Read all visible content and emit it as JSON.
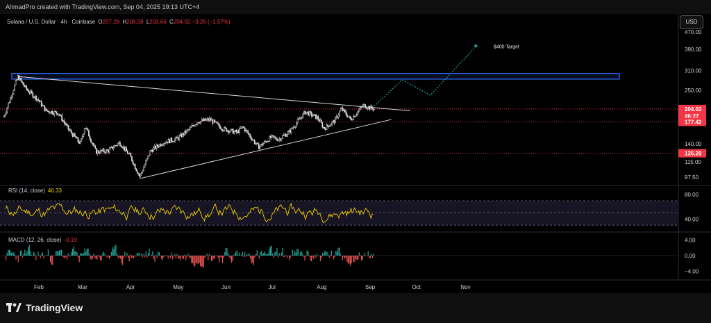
{
  "header": {
    "credit": "AhmadPro created with TradingView.com, Sep 04, 2025 19:13 UTC+4"
  },
  "legend": {
    "symbol": "Solana / U.S. Dollar · 4h · Coinbase",
    "open_label": "O",
    "open": "207.28",
    "high_label": "H",
    "high": "208.58",
    "low_label": "L",
    "low": "203.66",
    "close_label": "C",
    "close": "204.02",
    "change": "−3.26 (−1.57%)"
  },
  "currency_button": "USD",
  "footer": {
    "brand": "TradingView"
  },
  "chart_data": [
    {
      "type": "candlestick",
      "title": "Solana / U.S. Dollar · 4h · Coinbase",
      "scale": "log",
      "y_ticks": [
        "470.00",
        "390.00",
        "310.00",
        "250.00",
        "140.00",
        "115.00",
        "97.50"
      ],
      "y_tick_values": [
        470,
        390,
        310,
        250,
        140,
        115,
        97.5
      ],
      "ylim": [
        90,
        520
      ],
      "x_ticks": [
        "Feb",
        "Mar",
        "Apr",
        "May",
        "Jun",
        "Jul",
        "Aug",
        "Sep",
        "Oct",
        "Nov"
      ],
      "price_path": [
        {
          "date": "2025-01-10",
          "price": 188
        },
        {
          "date": "2025-01-19",
          "price": 290
        },
        {
          "date": "2025-01-24",
          "price": 255
        },
        {
          "date": "2025-02-01",
          "price": 225
        },
        {
          "date": "2025-02-06",
          "price": 200
        },
        {
          "date": "2025-02-14",
          "price": 195
        },
        {
          "date": "2025-02-20",
          "price": 165
        },
        {
          "date": "2025-02-28",
          "price": 140
        },
        {
          "date": "2025-03-03",
          "price": 170
        },
        {
          "date": "2025-03-10",
          "price": 128
        },
        {
          "date": "2025-03-18",
          "price": 130
        },
        {
          "date": "2025-03-25",
          "price": 142
        },
        {
          "date": "2025-04-01",
          "price": 122
        },
        {
          "date": "2025-04-07",
          "price": 98
        },
        {
          "date": "2025-04-14",
          "price": 130
        },
        {
          "date": "2025-04-22",
          "price": 142
        },
        {
          "date": "2025-05-01",
          "price": 148
        },
        {
          "date": "2025-05-08",
          "price": 162
        },
        {
          "date": "2025-05-14",
          "price": 178
        },
        {
          "date": "2025-05-22",
          "price": 182
        },
        {
          "date": "2025-05-30",
          "price": 165
        },
        {
          "date": "2025-06-08",
          "price": 158
        },
        {
          "date": "2025-06-12",
          "price": 168
        },
        {
          "date": "2025-06-22",
          "price": 135
        },
        {
          "date": "2025-06-30",
          "price": 150
        },
        {
          "date": "2025-07-05",
          "price": 147
        },
        {
          "date": "2025-07-12",
          "price": 160
        },
        {
          "date": "2025-07-22",
          "price": 198
        },
        {
          "date": "2025-07-30",
          "price": 185
        },
        {
          "date": "2025-08-03",
          "price": 165
        },
        {
          "date": "2025-08-10",
          "price": 180
        },
        {
          "date": "2025-08-14",
          "price": 205
        },
        {
          "date": "2025-08-20",
          "price": 182
        },
        {
          "date": "2025-08-28",
          "price": 212
        },
        {
          "date": "2025-09-04",
          "price": 204
        }
      ],
      "resistance_zone": {
        "low": 282,
        "high": 300
      },
      "levels": [
        {
          "name": "current-price",
          "price": 204.02,
          "label": "204.02",
          "color": "#f23645",
          "style": "dotted"
        },
        {
          "name": "countdown",
          "label": "46:27",
          "color": "#f23645"
        },
        {
          "name": "support-1",
          "price": 177.42,
          "label": "177.42",
          "color": "#f23645",
          "style": "dotted"
        },
        {
          "name": "support-2",
          "price": 126.29,
          "label": "126.29",
          "color": "#f23645",
          "style": "dotted"
        }
      ],
      "trendlines": [
        {
          "name": "descending-resistance",
          "from": {
            "date": "2025-01-19",
            "price": 290
          },
          "to": {
            "date": "2025-09-27",
            "price": 200
          }
        },
        {
          "name": "ascending-support",
          "from": {
            "date": "2025-04-07",
            "price": 96
          },
          "to": {
            "date": "2025-09-15",
            "price": 182
          }
        }
      ],
      "projection": {
        "label": "$400 Target",
        "points": [
          {
            "date": "2025-09-04",
            "price": 210
          },
          {
            "date": "2025-09-22",
            "price": 280
          },
          {
            "date": "2025-10-10",
            "price": 237
          },
          {
            "date": "2025-11-08",
            "price": 400
          }
        ]
      }
    },
    {
      "type": "line",
      "title": "RSI (14, close)",
      "name": "RSI",
      "last_value": "46.33",
      "y_ticks": [
        "80.00",
        "40.00"
      ],
      "y_tick_values": [
        80,
        40
      ],
      "ylim": [
        20,
        95
      ],
      "band": [
        30,
        70
      ],
      "midline": 50
    },
    {
      "type": "bar",
      "title": "MACD (12, 26, close)",
      "name": "MACD",
      "last_value": "-0.19",
      "y_ticks": [
        "4.00",
        "0.00",
        "−4.00"
      ],
      "y_tick_values": [
        4,
        0,
        -4
      ],
      "ylim": [
        -6,
        6
      ],
      "pos_color": "#26a69a",
      "neg_color": "#ef5350"
    }
  ],
  "colors": {
    "background": "#000000",
    "candle_up": "#e0e0e0",
    "candle_down": "#e0e0e0",
    "zone_border": "#2f6bff",
    "trendline": "#d6d6d6",
    "projection": "#26a69a",
    "level_red": "#f23645",
    "rsi_line": "#f0d000",
    "rsi_band": "#2a2540"
  }
}
